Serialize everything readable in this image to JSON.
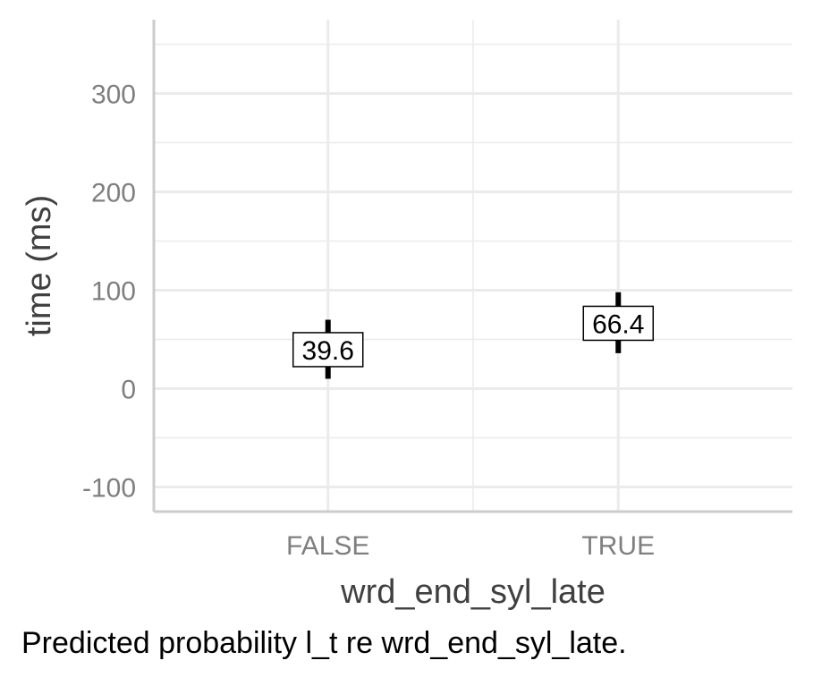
{
  "chart_data": {
    "type": "errorbar",
    "categories": [
      "FALSE",
      "TRUE"
    ],
    "values": [
      39.6,
      66.4
    ],
    "value_labels": [
      "39.6",
      "66.4"
    ],
    "error_low": [
      10,
      36
    ],
    "error_high": [
      70,
      98
    ],
    "xlabel": "wrd_end_syl_late",
    "ylabel": "time (ms)",
    "ylim": [
      -125,
      375
    ],
    "yticks": [
      -100,
      0,
      100,
      200,
      300
    ],
    "ytick_labels": [
      "-100",
      "0",
      "100",
      "200",
      "300"
    ],
    "grid": true
  },
  "caption": "Predicted probability l_t re wrd_end_syl_late.",
  "colors": {
    "grid": "#ebebeb",
    "axis": "#cccccc",
    "errorbar": "#000000",
    "tick_text": "#7f7f7f",
    "title_text": "#404040"
  }
}
